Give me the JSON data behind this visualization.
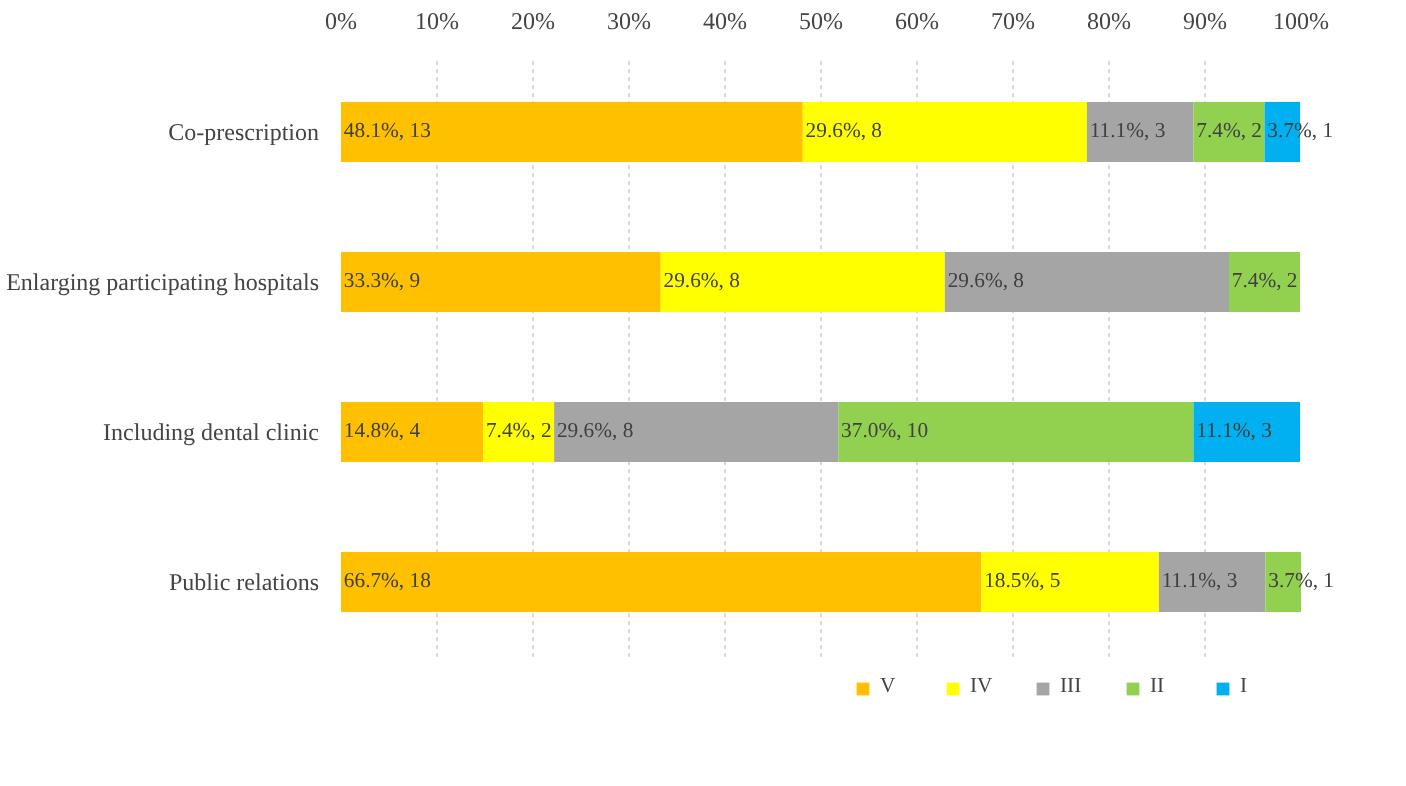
{
  "chart_data": {
    "type": "bar",
    "orientation": "horizontal",
    "stacked": true,
    "grid": "x",
    "legend": "bottom",
    "categories": [
      "Co-prescription",
      "Enlarging participating hospitals",
      "Including dental clinic",
      "Public relations"
    ],
    "xlim": [
      0,
      100
    ],
    "xticks": [
      {
        "value": 0,
        "label": "0%"
      },
      {
        "value": 10,
        "label": "10%"
      },
      {
        "value": 20,
        "label": "20%"
      },
      {
        "value": 30,
        "label": "30%"
      },
      {
        "value": 40,
        "label": "40%"
      },
      {
        "value": 50,
        "label": "50%"
      },
      {
        "value": 60,
        "label": "60%"
      },
      {
        "value": 70,
        "label": "70%"
      },
      {
        "value": 80,
        "label": "80%"
      },
      {
        "value": 90,
        "label": "90%"
      },
      {
        "value": 100,
        "label": "100%"
      }
    ],
    "series": [
      {
        "name": "V",
        "color": "#ffc000",
        "values": [
          48.1,
          33.3,
          14.8,
          66.7
        ],
        "value_labels": [
          "48.1%, 13",
          "33.3%, 9",
          "14.8%, 4",
          "66.7%, 18"
        ]
      },
      {
        "name": "IV",
        "color": "#ffff00",
        "values": [
          29.6,
          29.6,
          7.4,
          18.5
        ],
        "value_labels": [
          "29.6%, 8",
          "29.6%, 8",
          "7.4%, 2",
          "18.5%, 5"
        ]
      },
      {
        "name": "III",
        "color": "#a5a5a5",
        "values": [
          11.1,
          29.6,
          29.6,
          11.1
        ],
        "value_labels": [
          "11.1%, 3",
          "29.6%, 8",
          "29.6%, 8",
          "11.1%, 3"
        ]
      },
      {
        "name": "II",
        "color": "#92d050",
        "values": [
          7.4,
          7.4,
          37.0,
          3.7
        ],
        "value_labels": [
          "7.4%, 2",
          "7.4%, 2",
          "37.0%, 10",
          "3.7%, 1"
        ]
      },
      {
        "name": "I",
        "color": "#00b0f0",
        "values": [
          3.7,
          null,
          11.1,
          null
        ],
        "value_labels": [
          "3.7%, 1",
          null,
          "11.1%, 3",
          null
        ]
      }
    ]
  }
}
